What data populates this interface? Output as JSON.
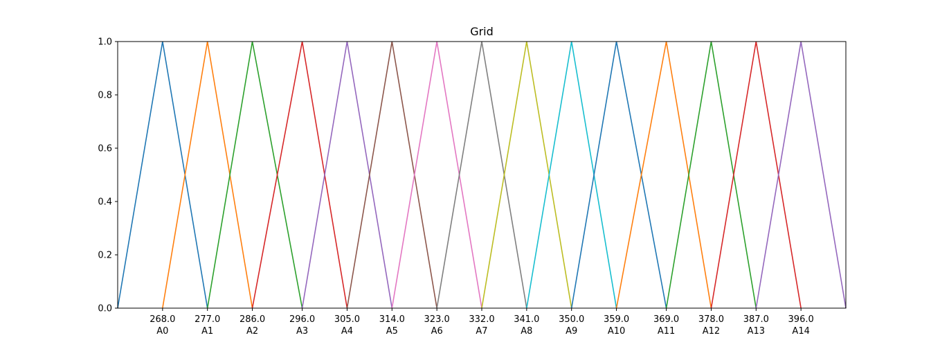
{
  "chart_data": {
    "type": "line",
    "title": "Grid",
    "xlabel": "",
    "ylabel": "",
    "xlim": [
      259.0,
      405.0
    ],
    "ylim": [
      0.0,
      1.0
    ],
    "grid": false,
    "legend": "none",
    "yticks": [
      {
        "value": 0.0,
        "label": "0.0"
      },
      {
        "value": 0.2,
        "label": "0.2"
      },
      {
        "value": 0.4,
        "label": "0.4"
      },
      {
        "value": 0.6,
        "label": "0.6"
      },
      {
        "value": 0.8,
        "label": "0.8"
      },
      {
        "value": 1.0,
        "label": "1.0"
      }
    ],
    "xticks": [
      {
        "value": 268.0,
        "label": "268.0",
        "sublabel": "A0"
      },
      {
        "value": 277.0,
        "label": "277.0",
        "sublabel": "A1"
      },
      {
        "value": 286.0,
        "label": "286.0",
        "sublabel": "A2"
      },
      {
        "value": 296.0,
        "label": "296.0",
        "sublabel": "A3"
      },
      {
        "value": 305.0,
        "label": "305.0",
        "sublabel": "A4"
      },
      {
        "value": 314.0,
        "label": "314.0",
        "sublabel": "A5"
      },
      {
        "value": 323.0,
        "label": "323.0",
        "sublabel": "A6"
      },
      {
        "value": 332.0,
        "label": "332.0",
        "sublabel": "A7"
      },
      {
        "value": 341.0,
        "label": "341.0",
        "sublabel": "A8"
      },
      {
        "value": 350.0,
        "label": "350.0",
        "sublabel": "A9"
      },
      {
        "value": 359.0,
        "label": "359.0",
        "sublabel": "A10"
      },
      {
        "value": 369.0,
        "label": "369.0",
        "sublabel": "A11"
      },
      {
        "value": 378.0,
        "label": "378.0",
        "sublabel": "A12"
      },
      {
        "value": 387.0,
        "label": "387.0",
        "sublabel": "A13"
      },
      {
        "value": 396.0,
        "label": "396.0",
        "sublabel": "A14"
      }
    ],
    "series": [
      {
        "color": "#1f77b4",
        "x": [
          259.0,
          268.0,
          277.0
        ],
        "y": [
          0,
          1,
          0
        ]
      },
      {
        "color": "#ff7f0e",
        "x": [
          268.0,
          277.0,
          286.0
        ],
        "y": [
          0,
          1,
          0
        ]
      },
      {
        "color": "#2ca02c",
        "x": [
          277.0,
          286.0,
          296.0
        ],
        "y": [
          0,
          1,
          0
        ]
      },
      {
        "color": "#d62728",
        "x": [
          286.0,
          296.0,
          305.0
        ],
        "y": [
          0,
          1,
          0
        ]
      },
      {
        "color": "#9467bd",
        "x": [
          296.0,
          305.0,
          314.0
        ],
        "y": [
          0,
          1,
          0
        ]
      },
      {
        "color": "#8c564b",
        "x": [
          305.0,
          314.0,
          323.0
        ],
        "y": [
          0,
          1,
          0
        ]
      },
      {
        "color": "#e377c2",
        "x": [
          314.0,
          323.0,
          332.0
        ],
        "y": [
          0,
          1,
          0
        ]
      },
      {
        "color": "#7f7f7f",
        "x": [
          323.0,
          332.0,
          341.0
        ],
        "y": [
          0,
          1,
          0
        ]
      },
      {
        "color": "#bcbd22",
        "x": [
          332.0,
          341.0,
          350.0
        ],
        "y": [
          0,
          1,
          0
        ]
      },
      {
        "color": "#17becf",
        "x": [
          341.0,
          350.0,
          359.0
        ],
        "y": [
          0,
          1,
          0
        ]
      },
      {
        "color": "#1f77b4",
        "x": [
          350.0,
          359.0,
          369.0
        ],
        "y": [
          0,
          1,
          0
        ]
      },
      {
        "color": "#ff7f0e",
        "x": [
          359.0,
          369.0,
          378.0
        ],
        "y": [
          0,
          1,
          0
        ]
      },
      {
        "color": "#2ca02c",
        "x": [
          369.0,
          378.0,
          387.0
        ],
        "y": [
          0,
          1,
          0
        ]
      },
      {
        "color": "#d62728",
        "x": [
          378.0,
          387.0,
          396.0
        ],
        "y": [
          0,
          1,
          0
        ]
      },
      {
        "color": "#9467bd",
        "x": [
          387.0,
          396.0,
          405.0
        ],
        "y": [
          0,
          1,
          0
        ]
      }
    ]
  }
}
